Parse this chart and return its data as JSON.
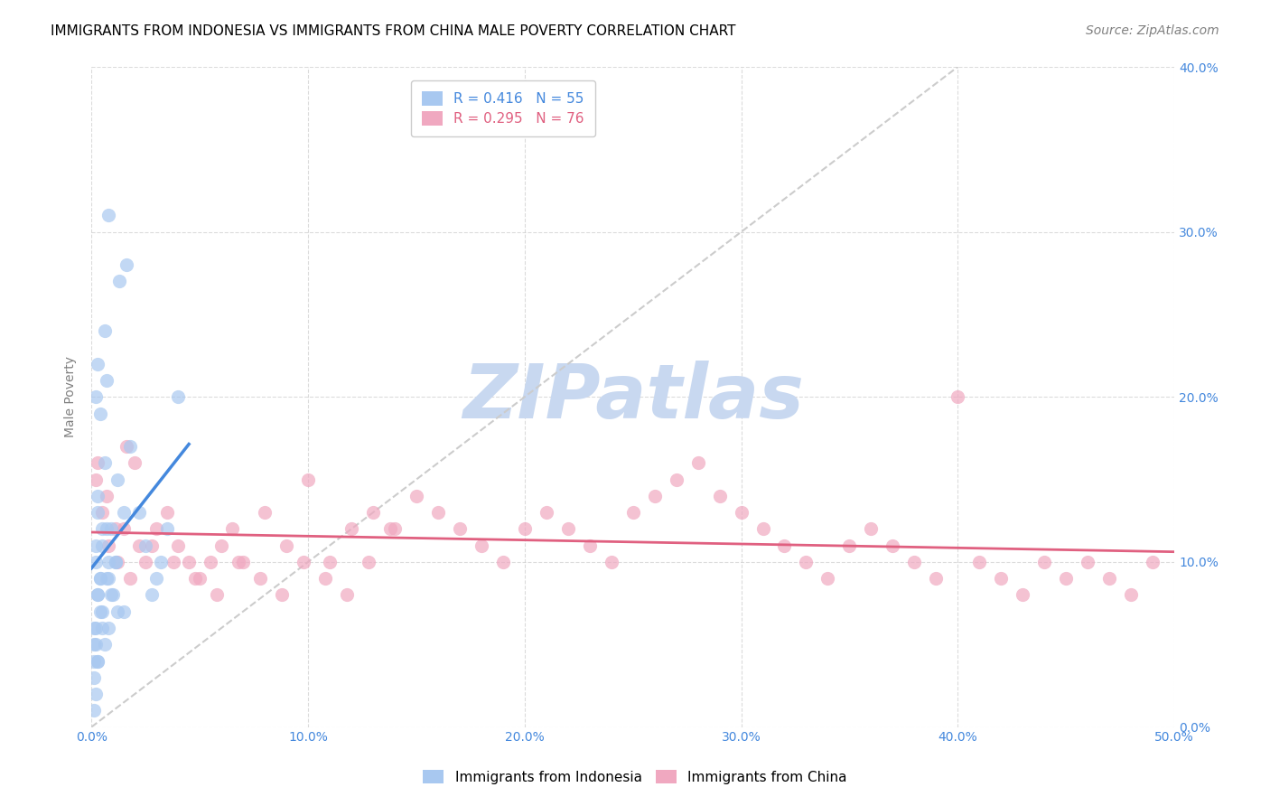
{
  "title": "IMMIGRANTS FROM INDONESIA VS IMMIGRANTS FROM CHINA MALE POVERTY CORRELATION CHART",
  "source": "Source: ZipAtlas.com",
  "xlabel": "",
  "ylabel": "Male Poverty",
  "xlim": [
    0.0,
    0.5
  ],
  "ylim": [
    0.0,
    0.4
  ],
  "xticks": [
    0.0,
    0.1,
    0.2,
    0.3,
    0.4,
    0.5
  ],
  "yticks": [
    0.0,
    0.1,
    0.2,
    0.3,
    0.4
  ],
  "xtick_labels": [
    "0.0%",
    "10.0%",
    "20.0%",
    "30.0%",
    "40.0%",
    "50.0%"
  ],
  "ytick_labels_right": [
    "0.0%",
    "10.0%",
    "20.0%",
    "30.0%",
    "40.0%"
  ],
  "color_indonesia": "#a8c8f0",
  "color_china": "#f0a8c0",
  "trendline_color_indonesia": "#4488dd",
  "trendline_color_china": "#e06080",
  "diagonal_color": "#cccccc",
  "R_indonesia": 0.416,
  "N_indonesia": 55,
  "R_china": 0.295,
  "N_china": 76,
  "legend_label_indonesia": "Immigrants from Indonesia",
  "legend_label_china": "Immigrants from China",
  "indonesia_x": [
    0.005,
    0.012,
    0.008,
    0.003,
    0.002,
    0.015,
    0.018,
    0.007,
    0.004,
    0.001,
    0.003,
    0.006,
    0.009,
    0.011,
    0.002,
    0.004,
    0.003,
    0.001,
    0.002,
    0.005,
    0.008,
    0.013,
    0.016,
    0.006,
    0.003,
    0.002,
    0.004,
    0.007,
    0.01,
    0.005,
    0.001,
    0.003,
    0.006,
    0.008,
    0.012,
    0.002,
    0.004,
    0.009,
    0.015,
    0.007,
    0.003,
    0.001,
    0.005,
    0.008,
    0.011,
    0.022,
    0.025,
    0.03,
    0.028,
    0.032,
    0.035,
    0.04,
    0.002,
    0.001,
    0.003
  ],
  "indonesia_y": [
    0.12,
    0.15,
    0.1,
    0.08,
    0.11,
    0.13,
    0.17,
    0.09,
    0.07,
    0.06,
    0.14,
    0.16,
    0.12,
    0.1,
    0.05,
    0.09,
    0.08,
    0.04,
    0.06,
    0.11,
    0.31,
    0.27,
    0.28,
    0.24,
    0.22,
    0.2,
    0.19,
    0.21,
    0.08,
    0.07,
    0.03,
    0.04,
    0.05,
    0.06,
    0.07,
    0.1,
    0.09,
    0.08,
    0.07,
    0.12,
    0.13,
    0.05,
    0.06,
    0.09,
    0.1,
    0.13,
    0.11,
    0.09,
    0.08,
    0.1,
    0.12,
    0.2,
    0.02,
    0.01,
    0.04
  ],
  "china_x": [
    0.002,
    0.005,
    0.008,
    0.012,
    0.015,
    0.018,
    0.022,
    0.025,
    0.03,
    0.035,
    0.04,
    0.045,
    0.05,
    0.055,
    0.06,
    0.065,
    0.07,
    0.08,
    0.09,
    0.1,
    0.11,
    0.12,
    0.13,
    0.14,
    0.15,
    0.16,
    0.17,
    0.18,
    0.19,
    0.2,
    0.21,
    0.22,
    0.23,
    0.24,
    0.25,
    0.26,
    0.27,
    0.28,
    0.29,
    0.3,
    0.31,
    0.32,
    0.33,
    0.34,
    0.35,
    0.36,
    0.37,
    0.38,
    0.39,
    0.4,
    0.41,
    0.42,
    0.43,
    0.44,
    0.45,
    0.46,
    0.47,
    0.48,
    0.49,
    0.003,
    0.007,
    0.011,
    0.016,
    0.02,
    0.028,
    0.038,
    0.048,
    0.058,
    0.068,
    0.078,
    0.088,
    0.098,
    0.108,
    0.118,
    0.128,
    0.138
  ],
  "china_y": [
    0.15,
    0.13,
    0.11,
    0.1,
    0.12,
    0.09,
    0.11,
    0.1,
    0.12,
    0.13,
    0.11,
    0.1,
    0.09,
    0.1,
    0.11,
    0.12,
    0.1,
    0.13,
    0.11,
    0.15,
    0.1,
    0.12,
    0.13,
    0.12,
    0.14,
    0.13,
    0.12,
    0.11,
    0.1,
    0.12,
    0.13,
    0.12,
    0.11,
    0.1,
    0.13,
    0.14,
    0.15,
    0.16,
    0.14,
    0.13,
    0.12,
    0.11,
    0.1,
    0.09,
    0.11,
    0.12,
    0.11,
    0.1,
    0.09,
    0.2,
    0.1,
    0.09,
    0.08,
    0.1,
    0.09,
    0.1,
    0.09,
    0.08,
    0.1,
    0.16,
    0.14,
    0.12,
    0.17,
    0.16,
    0.11,
    0.1,
    0.09,
    0.08,
    0.1,
    0.09,
    0.08,
    0.1,
    0.09,
    0.08,
    0.1,
    0.12
  ],
  "watermark_text": "ZIPatlas",
  "watermark_color": "#c8d8f0",
  "background_color": "#ffffff",
  "grid_color": "#cccccc",
  "title_fontsize": 11,
  "axis_label_fontsize": 10,
  "tick_fontsize": 10,
  "legend_fontsize": 11,
  "source_fontsize": 10
}
